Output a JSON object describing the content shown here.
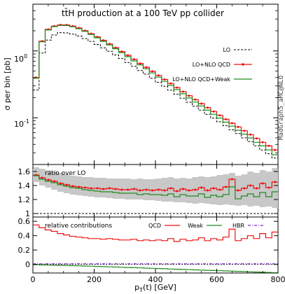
{
  "chart_data": {
    "type": "line",
    "subtype": "step-histogram",
    "watermark": "MadGraph5_aMC@NLO",
    "xlabel": "p_T(t) [GeV]",
    "xlim": [
      0,
      800
    ],
    "x_ticks": [
      0,
      200,
      400,
      600,
      800
    ],
    "bin_edges": [
      0,
      20,
      40,
      60,
      80,
      100,
      120,
      140,
      160,
      180,
      200,
      220,
      240,
      260,
      280,
      300,
      320,
      340,
      360,
      380,
      400,
      420,
      440,
      460,
      480,
      500,
      520,
      540,
      560,
      580,
      600,
      620,
      640,
      660,
      680,
      700,
      720,
      740,
      760,
      780,
      800
    ],
    "panels": [
      {
        "id": "main",
        "title": "tt̄H production at a 100 TeV pp collider",
        "ylabel": "σ per bin [pb]",
        "yscale": "log",
        "ylim": [
          0.02,
          5
        ],
        "y_tick_labels": [
          {
            "value": 1,
            "text": "10^0"
          },
          {
            "value": 0.1,
            "text": "10^-1"
          }
        ],
        "legend_position": "right",
        "series": [
          {
            "name": "LO",
            "color": "#000000",
            "style": "dashed",
            "values": [
              0.26,
              0.93,
              1.45,
              1.73,
              1.88,
              1.86,
              1.78,
              1.67,
              1.53,
              1.39,
              1.25,
              1.11,
              0.99,
              0.87,
              0.77,
              0.67,
              0.59,
              0.51,
              0.45,
              0.39,
              0.34,
              0.296,
              0.258,
              0.225,
              0.196,
              0.171,
              0.149,
              0.13,
              0.113,
              0.099,
              0.087,
              0.076,
              0.066,
              0.058,
              0.05,
              0.044,
              0.038,
              0.033,
              0.029,
              0.025
            ]
          },
          {
            "name": "LO+NLO QCD",
            "color": "#ee1111",
            "style": "solid-markers",
            "values": [
              0.4,
              1.4,
              2.1,
              2.35,
              2.45,
              2.45,
              2.35,
              2.2,
              2.01,
              1.81,
              1.62,
              1.44,
              1.27,
              1.12,
              0.98,
              0.86,
              0.75,
              0.65,
              0.57,
              0.495,
              0.43,
              0.374,
              0.326,
              0.283,
              0.246,
              0.214,
              0.187,
              0.163,
              0.142,
              0.124,
              0.109,
              0.095,
              0.083,
              0.073,
              0.064,
              0.056,
              0.049,
              0.043,
              0.038,
              0.033
            ]
          },
          {
            "name": "LO+NLO QCD+Weak",
            "color": "#1f8a1f",
            "style": "solid",
            "values": [
              0.39,
              1.37,
              2.06,
              2.31,
              2.41,
              2.4,
              2.3,
              2.15,
              1.96,
              1.76,
              1.57,
              1.39,
              1.23,
              1.08,
              0.94,
              0.82,
              0.71,
              0.62,
              0.54,
              0.468,
              0.405,
              0.351,
              0.305,
              0.264,
              0.229,
              0.198,
              0.172,
              0.15,
              0.13,
              0.113,
              0.099,
              0.086,
              0.075,
              0.065,
              0.057,
              0.05,
              0.043,
              0.038,
              0.033,
              0.028
            ]
          }
        ]
      },
      {
        "id": "ratio",
        "title": "ratio over LO",
        "ylim": [
          0.95,
          1.7
        ],
        "y_tick_labels": [
          1,
          1.2,
          1.4,
          1.6
        ],
        "band_color": "#c8c8c8",
        "band": {
          "low": [
            1.45,
            1.4,
            1.37,
            1.34,
            1.31,
            1.29,
            1.27,
            1.26,
            1.25,
            1.24,
            1.23,
            1.23,
            1.22,
            1.21,
            1.21,
            1.2,
            1.2,
            1.2,
            1.19,
            1.19,
            1.18,
            1.17,
            1.17,
            1.16,
            1.16,
            1.15,
            1.14,
            1.15,
            1.14,
            1.13,
            1.12,
            1.13,
            1.12,
            1.11,
            1.12,
            1.1,
            1.11,
            1.09,
            1.1,
            1.08
          ],
          "high": [
            1.66,
            1.64,
            1.62,
            1.6,
            1.58,
            1.56,
            1.54,
            1.53,
            1.52,
            1.52,
            1.51,
            1.51,
            1.5,
            1.5,
            1.5,
            1.5,
            1.49,
            1.5,
            1.49,
            1.49,
            1.5,
            1.51,
            1.52,
            1.5,
            1.51,
            1.5,
            1.52,
            1.53,
            1.52,
            1.53,
            1.55,
            1.56,
            1.58,
            1.54,
            1.56,
            1.6,
            1.58,
            1.62,
            1.6,
            1.65
          ]
        },
        "series": [
          {
            "name": "LO",
            "color": "#000000",
            "style": "dashed",
            "values": [
              1,
              1,
              1,
              1,
              1,
              1,
              1,
              1,
              1,
              1,
              1,
              1,
              1,
              1,
              1,
              1,
              1,
              1,
              1,
              1,
              1,
              1,
              1,
              1,
              1,
              1,
              1,
              1,
              1,
              1,
              1,
              1,
              1,
              1,
              1,
              1,
              1,
              1,
              1,
              1
            ]
          },
          {
            "name": "LO+NLO QCD",
            "color": "#ee1111",
            "style": "solid-markers",
            "values": [
              1.55,
              1.51,
              1.48,
              1.46,
              1.43,
              1.41,
              1.39,
              1.38,
              1.37,
              1.36,
              1.36,
              1.35,
              1.36,
              1.35,
              1.34,
              1.34,
              1.35,
              1.33,
              1.34,
              1.33,
              1.34,
              1.33,
              1.36,
              1.32,
              1.35,
              1.33,
              1.34,
              1.37,
              1.33,
              1.36,
              1.34,
              1.38,
              1.49,
              1.33,
              1.36,
              1.4,
              1.36,
              1.43,
              1.37,
              1.45
            ]
          },
          {
            "name": "LO+NLO QCD+Weak",
            "color": "#1f8a1f",
            "style": "solid",
            "values": [
              1.54,
              1.49,
              1.46,
              1.44,
              1.41,
              1.39,
              1.37,
              1.36,
              1.34,
              1.33,
              1.32,
              1.31,
              1.31,
              1.3,
              1.29,
              1.29,
              1.29,
              1.27,
              1.28,
              1.27,
              1.27,
              1.26,
              1.28,
              1.24,
              1.27,
              1.25,
              1.25,
              1.28,
              1.23,
              1.26,
              1.24,
              1.27,
              1.38,
              1.21,
              1.25,
              1.28,
              1.24,
              1.3,
              1.24,
              1.31
            ]
          }
        ]
      },
      {
        "id": "contrib",
        "title": "relative contributions",
        "xlabel": "p_T(t) [GeV]",
        "ylim": [
          -0.12,
          0.66
        ],
        "y_tick_labels": [
          0,
          0.2,
          0.4,
          0.6
        ],
        "legend_position": "top-right",
        "series": [
          {
            "name": "QCD",
            "color": "#ee1111",
            "style": "solid",
            "values": [
              0.55,
              0.51,
              0.48,
              0.46,
              0.43,
              0.41,
              0.39,
              0.38,
              0.37,
              0.36,
              0.36,
              0.35,
              0.36,
              0.35,
              0.34,
              0.34,
              0.35,
              0.33,
              0.34,
              0.33,
              0.34,
              0.33,
              0.36,
              0.32,
              0.35,
              0.33,
              0.34,
              0.37,
              0.33,
              0.36,
              0.34,
              0.38,
              0.49,
              0.33,
              0.36,
              0.4,
              0.36,
              0.43,
              0.37,
              0.45
            ]
          },
          {
            "name": "Weak",
            "color": "#1f8a1f",
            "style": "solid",
            "values": [
              -0.005,
              -0.008,
              -0.01,
              -0.012,
              -0.014,
              -0.016,
              -0.018,
              -0.02,
              -0.023,
              -0.025,
              -0.028,
              -0.031,
              -0.034,
              -0.037,
              -0.04,
              -0.043,
              -0.046,
              -0.049,
              -0.052,
              -0.055,
              -0.058,
              -0.061,
              -0.064,
              -0.067,
              -0.07,
              -0.073,
              -0.076,
              -0.079,
              -0.082,
              -0.085,
              -0.088,
              -0.091,
              -0.094,
              -0.097,
              -0.1,
              -0.103,
              -0.106,
              -0.109,
              -0.112,
              -0.115
            ]
          },
          {
            "name": "HBR",
            "color": "#7b2ac6",
            "style": "dash-dot",
            "values": [
              0.008,
              0.008,
              0.008,
              0.008,
              0.008,
              0.008,
              0.008,
              0.008,
              0.008,
              0.008,
              0.008,
              0.008,
              0.008,
              0.008,
              0.008,
              0.008,
              0.008,
              0.008,
              0.008,
              0.008,
              0.008,
              0.008,
              0.008,
              0.008,
              0.008,
              0.008,
              0.008,
              0.008,
              0.008,
              0.008,
              0.008,
              0.008,
              0.008,
              0.008,
              0.008,
              0.008,
              0.008,
              0.008,
              0.008,
              0.008
            ]
          }
        ]
      }
    ]
  }
}
